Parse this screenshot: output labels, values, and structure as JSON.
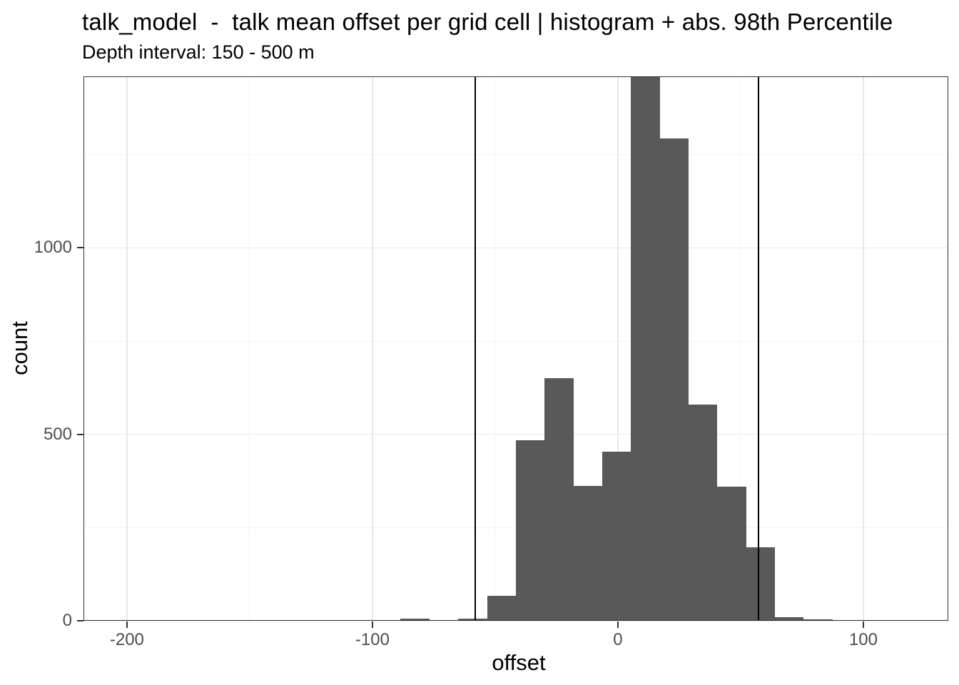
{
  "chart_data": {
    "type": "bar",
    "subtype": "histogram",
    "title": "talk_model  -  talk mean offset per grid cell | histogram + abs. 98th Percentile",
    "subtitle": "Depth interval: 150 - 500 m",
    "xlabel": "offset",
    "ylabel": "count",
    "xlim": [
      -217.7,
      134.6
    ],
    "ylim": [
      0,
      1460
    ],
    "x_ticks": [
      -200,
      -100,
      0,
      100
    ],
    "x_tick_labels": [
      "-200",
      "-100",
      "0",
      "100"
    ],
    "y_ticks": [
      0,
      500,
      1000
    ],
    "y_tick_labels": [
      "0",
      "500",
      "1000"
    ],
    "x_minor_gridlines": [
      -150,
      -50,
      50
    ],
    "y_minor_gridlines": [
      250,
      750,
      1250
    ],
    "grid": true,
    "legend": "none",
    "bin_width": 11.73,
    "bins": [
      {
        "x0": -88.5,
        "x1": -76.8,
        "count": 5
      },
      {
        "x0": -76.8,
        "x1": -65.1,
        "count": 2
      },
      {
        "x0": -65.1,
        "x1": -53.3,
        "count": 5
      },
      {
        "x0": -53.3,
        "x1": -41.6,
        "count": 67
      },
      {
        "x0": -41.6,
        "x1": -29.9,
        "count": 484
      },
      {
        "x0": -29.9,
        "x1": -18.1,
        "count": 650
      },
      {
        "x0": -18.1,
        "x1": -6.4,
        "count": 361
      },
      {
        "x0": -6.4,
        "x1": 5.3,
        "count": 453
      },
      {
        "x0": 5.3,
        "x1": 17.1,
        "count": 1460
      },
      {
        "x0": 17.1,
        "x1": 28.8,
        "count": 1294
      },
      {
        "x0": 28.8,
        "x1": 40.4,
        "count": 579
      },
      {
        "x0": 40.4,
        "x1": 52.2,
        "count": 359
      },
      {
        "x0": 52.2,
        "x1": 64.0,
        "count": 197
      },
      {
        "x0": 64.0,
        "x1": 75.7,
        "count": 10
      },
      {
        "x0": 75.7,
        "x1": 87.4,
        "count": 3
      },
      {
        "x0": 87.4,
        "x1": 99.2,
        "count": 1
      }
    ],
    "vlines": [
      {
        "x": -58.2,
        "meaning": "abs. 98th Percentile (negative)"
      },
      {
        "x": 57.4,
        "meaning": "abs. 98th Percentile (positive)"
      }
    ],
    "colors": {
      "bar_fill": "#595959",
      "vline": "#000000",
      "grid_major": "#e8e8e8",
      "grid_minor": "#f4f4f4",
      "panel_border": "#333333",
      "axis_tick": "#333333",
      "axis_text": "#4d4d4d",
      "title_text": "#000000",
      "background": "#ffffff"
    }
  }
}
